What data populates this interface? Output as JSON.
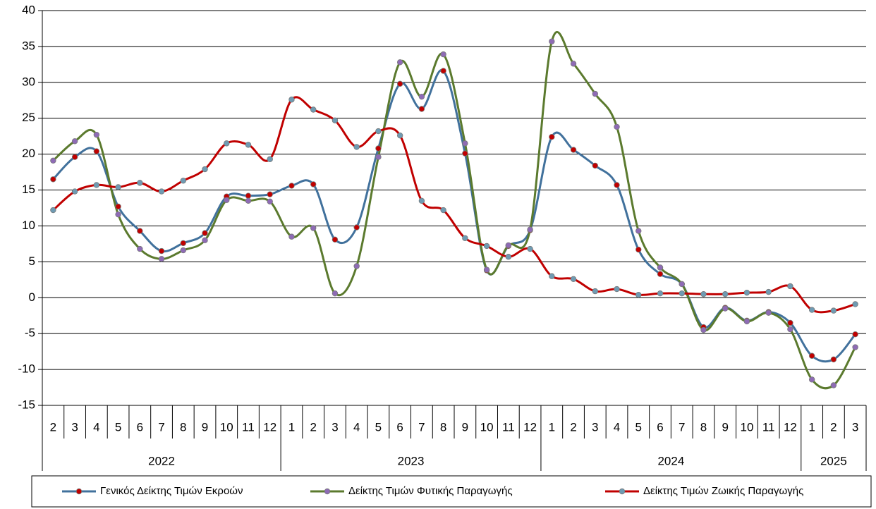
{
  "chart_data": {
    "type": "line",
    "smooth": true,
    "grid": true,
    "ylim": [
      -15,
      40
    ],
    "yticks": [
      -15,
      -10,
      -5,
      0,
      5,
      10,
      15,
      20,
      25,
      30,
      35,
      40
    ],
    "groups": [
      {
        "name": "2022",
        "categories": [
          "2",
          "3",
          "4",
          "5",
          "6",
          "7",
          "8",
          "9",
          "10",
          "11",
          "12"
        ]
      },
      {
        "name": "2023",
        "categories": [
          "1",
          "2",
          "3",
          "4",
          "5",
          "6",
          "7",
          "8",
          "9",
          "10",
          "11",
          "12"
        ]
      },
      {
        "name": "2024",
        "categories": [
          "1",
          "2",
          "3",
          "4",
          "5",
          "6",
          "7",
          "8",
          "9",
          "10",
          "11",
          "12"
        ]
      },
      {
        "name": "2025",
        "categories": [
          "1",
          "2",
          "3"
        ]
      }
    ],
    "series": [
      {
        "name": "Γενικός Δείκτης Τιμών Εκροών",
        "color": "#41719c",
        "marker_color": "#c00000",
        "values": [
          16.5,
          19.6,
          20.4,
          12.7,
          9.3,
          6.5,
          7.6,
          9.0,
          14.1,
          14.2,
          14.4,
          15.6,
          15.8,
          8.1,
          9.8,
          20.8,
          29.8,
          26.3,
          31.6,
          20.1,
          3.8,
          7.2,
          9.4,
          22.4,
          20.6,
          18.4,
          15.7,
          6.7,
          3.3,
          1.9,
          -4.1,
          -1.4,
          -3.2,
          -2.0,
          -3.5,
          -8.1,
          -8.6,
          -5.1
        ]
      },
      {
        "name": "Δείκτης Τιμών Φυτικής Παραγωγής",
        "color": "#5b7a2e",
        "marker_color": "#8e6bb5",
        "values": [
          19.1,
          21.8,
          22.7,
          11.6,
          6.8,
          5.4,
          6.6,
          8.0,
          13.6,
          13.5,
          13.4,
          8.5,
          9.7,
          0.6,
          4.4,
          19.6,
          32.8,
          28.0,
          33.9,
          21.5,
          3.9,
          7.3,
          9.5,
          35.7,
          32.6,
          28.4,
          23.8,
          9.3,
          4.2,
          1.9,
          -4.5,
          -1.5,
          -3.3,
          -2.1,
          -4.4,
          -11.4,
          -12.2,
          -6.9
        ]
      },
      {
        "name": "Δείκτης Τιμών Ζωικής Παραγωγής",
        "color": "#c00000",
        "marker_color": "#6f9bb3",
        "values": [
          12.2,
          14.8,
          15.7,
          15.4,
          16.0,
          14.8,
          16.3,
          17.9,
          21.5,
          21.3,
          19.3,
          27.6,
          26.2,
          24.7,
          21.0,
          23.2,
          22.6,
          13.5,
          12.2,
          8.3,
          7.2,
          5.7,
          6.8,
          3.0,
          2.6,
          0.9,
          1.2,
          0.4,
          0.6,
          0.6,
          0.5,
          0.5,
          0.7,
          0.8,
          1.6,
          -1.7,
          -1.8,
          -0.9
        ]
      }
    ]
  }
}
